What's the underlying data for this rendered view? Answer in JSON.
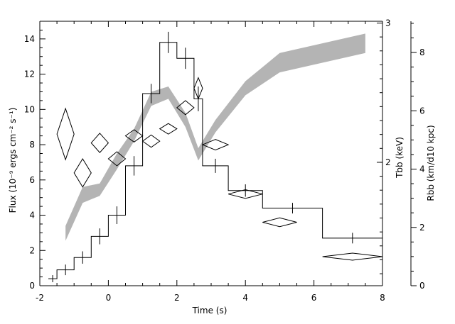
{
  "chart_data": {
    "type": "line",
    "xlabel": "Time (s)",
    "ylabel_left": "Flux (10⁻⁹ ergs cm⁻² s⁻¹)",
    "ylabel_right_inner": "Tbb (keV)",
    "ylabel_right_outer": "Rbb (km/d10 kpc)",
    "xlim": [
      -2,
      8
    ],
    "ylim_left": [
      0,
      15
    ],
    "x_ticks": [
      -2,
      0,
      2,
      4,
      6,
      8
    ],
    "y_ticks_left": [
      0,
      2,
      4,
      6,
      8,
      10,
      12,
      14
    ],
    "y_ticks_right_inner": [
      {
        "label": "2",
        "flux": 7.0
      },
      {
        "label": "3",
        "flux": 14.9
      }
    ],
    "y_ticks_right_outer": [
      0,
      2,
      4,
      6,
      8
    ],
    "right_outer_max": 9.07,
    "series": [
      {
        "name": "Flux",
        "style": "histogram",
        "bins": [
          {
            "x0": -1.75,
            "x1": -1.5,
            "y": 0.4,
            "yerr": 0
          },
          {
            "x0": -1.5,
            "x1": -1.0,
            "y": 0.9,
            "yerr": 0.1
          },
          {
            "x0": -1.0,
            "x1": -0.5,
            "y": 1.6,
            "yerr": 0.15
          },
          {
            "x0": -0.5,
            "x1": 0.0,
            "y": 2.8,
            "yerr": 0.25
          },
          {
            "x0": 0.0,
            "x1": 0.5,
            "y": 4.0,
            "yerr": 0.3
          },
          {
            "x0": 0.5,
            "x1": 1.0,
            "y": 6.8,
            "yerr": 0.35
          },
          {
            "x0": 1.0,
            "x1": 1.5,
            "y": 10.9,
            "yerr": 0.35
          },
          {
            "x0": 1.5,
            "x1": 2.0,
            "y": 13.8,
            "yerr": 0.4
          },
          {
            "x0": 2.0,
            "x1": 2.5,
            "y": 12.9,
            "yerr": 0.4
          },
          {
            "x0": 2.5,
            "x1": 2.75,
            "y": 10.6,
            "yerr": 0.5
          },
          {
            "x0": 2.75,
            "x1": 3.5,
            "y": 6.8,
            "yerr": 0.2
          },
          {
            "x0": 3.5,
            "x1": 4.5,
            "y": 5.4,
            "yerr": 0.15
          },
          {
            "x0": 4.5,
            "x1": 6.25,
            "y": 4.4,
            "yerr": 0.1
          },
          {
            "x0": 6.25,
            "x1": 8.0,
            "y": 2.7,
            "yerr": 0.1
          }
        ]
      },
      {
        "name": "Tbb",
        "style": "diamonds",
        "points": [
          {
            "x": -1.25,
            "y": 8.6,
            "dx": 0.25,
            "dy": 1.45
          },
          {
            "x": -0.75,
            "y": 6.4,
            "dx": 0.25,
            "dy": 0.8
          },
          {
            "x": -0.25,
            "y": 8.1,
            "dx": 0.25,
            "dy": 0.55
          },
          {
            "x": 0.25,
            "y": 7.2,
            "dx": 0.25,
            "dy": 0.4
          },
          {
            "x": 0.75,
            "y": 8.5,
            "dx": 0.25,
            "dy": 0.35
          },
          {
            "x": 1.25,
            "y": 8.2,
            "dx": 0.25,
            "dy": 0.35
          },
          {
            "x": 1.75,
            "y": 8.9,
            "dx": 0.25,
            "dy": 0.3
          },
          {
            "x": 2.25,
            "y": 10.1,
            "dx": 0.25,
            "dy": 0.4
          },
          {
            "x": 2.625,
            "y": 11.2,
            "dx": 0.125,
            "dy": 0.6
          },
          {
            "x": 3.125,
            "y": 8.0,
            "dx": 0.375,
            "dy": 0.3
          },
          {
            "x": 4.0,
            "y": 5.2,
            "dx": 0.5,
            "dy": 0.25
          },
          {
            "x": 5.0,
            "y": 3.6,
            "dx": 0.5,
            "dy": 0.25
          },
          {
            "x": 7.125,
            "y": 1.65,
            "dx": 0.875,
            "dy": 0.2
          }
        ]
      },
      {
        "name": "Rbb",
        "style": "band",
        "points": [
          {
            "x": -1.25,
            "lo": 2.55,
            "hi": 3.4
          },
          {
            "x": -0.75,
            "lo": 4.7,
            "hi": 5.6
          },
          {
            "x": -0.25,
            "lo": 5.1,
            "hi": 5.8
          },
          {
            "x": 0.25,
            "lo": 6.6,
            "hi": 7.5
          },
          {
            "x": 0.75,
            "lo": 8.2,
            "hi": 8.9
          },
          {
            "x": 1.25,
            "lo": 10.2,
            "hi": 11.0
          },
          {
            "x": 1.75,
            "lo": 10.6,
            "hi": 11.3
          },
          {
            "x": 2.25,
            "lo": 9.0,
            "hi": 9.8
          },
          {
            "x": 2.625,
            "lo": 7.1,
            "hi": 7.8
          },
          {
            "x": 3.125,
            "lo": 8.7,
            "hi": 9.4
          },
          {
            "x": 4.0,
            "lo": 10.8,
            "hi": 11.6
          },
          {
            "x": 5.0,
            "lo": 12.1,
            "hi": 13.2
          },
          {
            "x": 7.5,
            "lo": 13.2,
            "hi": 14.3
          }
        ]
      }
    ]
  }
}
